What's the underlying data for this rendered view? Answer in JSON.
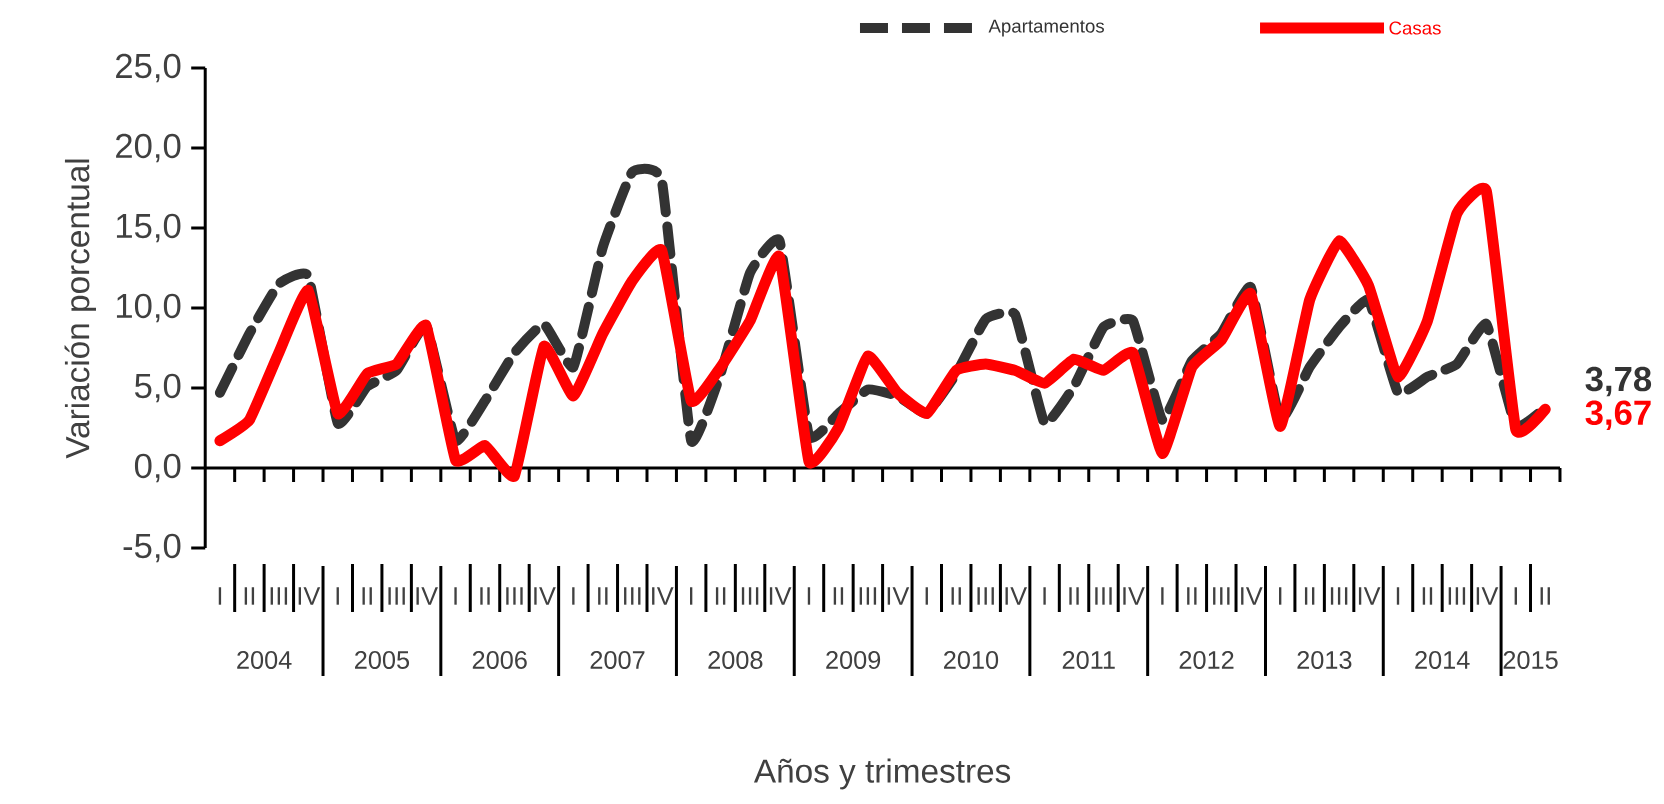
{
  "chart_data": {
    "type": "line",
    "xlabel": "Años y trimestres",
    "ylabel": "Variación porcentual",
    "categories": [
      "I",
      "II",
      "III",
      "IV",
      "I",
      "II",
      "III",
      "IV",
      "I",
      "II",
      "III",
      "IV",
      "I",
      "II",
      "III",
      "IV",
      "I",
      "II",
      "III",
      "IV",
      "I",
      "II",
      "III",
      "IV",
      "I",
      "II",
      "III",
      "IV",
      "I",
      "II",
      "III",
      "IV",
      "I",
      "II",
      "III",
      "IV",
      "I",
      "II",
      "III",
      "IV",
      "I",
      "II",
      "III",
      "IV",
      "I",
      "II"
    ],
    "annotations": [
      "2004",
      "2005",
      "2006",
      "2007",
      "2008",
      "2009",
      "2010",
      "2011",
      "2012",
      "2013",
      "2014",
      "2015"
    ],
    "ylim": [
      -5,
      25
    ],
    "yticks": [
      {
        "value": -5,
        "label": "-5,0"
      },
      {
        "value": 0,
        "label": "0,0"
      },
      {
        "value": 5,
        "label": "5,0"
      },
      {
        "value": 10,
        "label": "10,0"
      },
      {
        "value": 15,
        "label": "15,0"
      },
      {
        "value": 20,
        "label": "20,0"
      },
      {
        "value": 25,
        "label": "25,0"
      }
    ],
    "legend": "top right",
    "series": [
      {
        "name": "Apartamentos",
        "color": "#333333",
        "line_style": "dashed",
        "values": [
          4.7,
          8.4,
          11.5,
          12.0,
          2.8,
          5.1,
          6.1,
          8.9,
          1.7,
          4.2,
          7.2,
          9.0,
          6.3,
          13.8,
          18.5,
          18.0,
          1.7,
          5.9,
          12.2,
          14.2,
          2.0,
          3.4,
          4.9,
          4.5,
          3.4,
          5.9,
          9.3,
          9.6,
          2.8,
          5.1,
          8.8,
          9.2,
          3.0,
          6.7,
          8.4,
          11.3,
          3.0,
          6.3,
          8.8,
          10.5,
          4.7,
          5.7,
          6.5,
          9.0,
          2.6,
          3.78
        ],
        "value_labels": [
          null,
          null,
          null,
          null,
          null,
          null,
          null,
          null,
          null,
          null,
          null,
          null,
          null,
          null,
          null,
          null,
          null,
          null,
          null,
          null,
          null,
          null,
          null,
          null,
          null,
          null,
          null,
          null,
          null,
          null,
          null,
          null,
          null,
          null,
          null,
          null,
          null,
          null,
          null,
          null,
          null,
          null,
          null,
          null,
          null,
          "3,78"
        ]
      },
      {
        "name": "Casas",
        "color": "#ff0000",
        "line_style": "solid",
        "values": [
          1.7,
          3.0,
          7.2,
          11.1,
          3.4,
          5.9,
          6.5,
          8.9,
          0.5,
          1.4,
          -0.5,
          7.6,
          4.5,
          8.4,
          11.7,
          13.6,
          4.2,
          6.3,
          9.2,
          13.2,
          0.4,
          2.5,
          7.0,
          4.7,
          3.4,
          6.1,
          6.5,
          6.1,
          5.3,
          6.8,
          6.1,
          7.2,
          0.9,
          6.3,
          8.0,
          10.9,
          2.6,
          10.5,
          14.2,
          11.4,
          5.7,
          9.2,
          15.9,
          17.3,
          2.4,
          3.67
        ],
        "value_labels": [
          null,
          null,
          null,
          null,
          null,
          null,
          null,
          null,
          null,
          null,
          null,
          null,
          null,
          null,
          null,
          null,
          null,
          null,
          null,
          null,
          null,
          null,
          null,
          null,
          null,
          null,
          null,
          null,
          null,
          null,
          null,
          null,
          null,
          null,
          null,
          null,
          null,
          null,
          null,
          null,
          null,
          null,
          null,
          null,
          null,
          "3,67"
        ]
      }
    ]
  }
}
